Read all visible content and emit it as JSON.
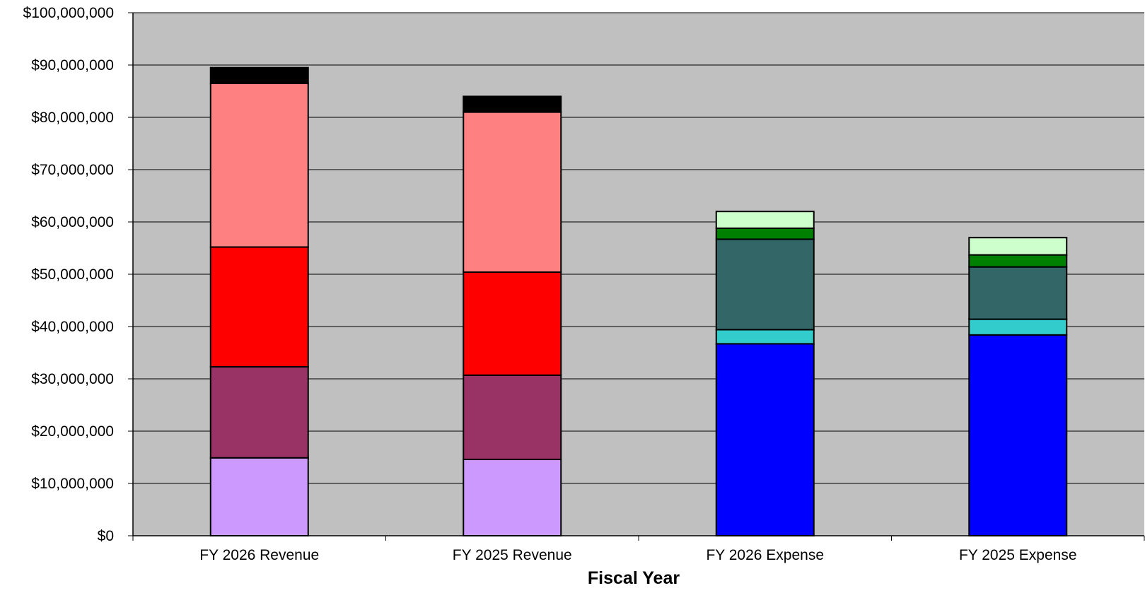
{
  "chart_data": {
    "type": "bar",
    "stacked": true,
    "title": "",
    "xlabel": "Fiscal Year",
    "ylabel": "",
    "ylim": [
      0,
      100000000
    ],
    "yticks": [
      0,
      10000000,
      20000000,
      30000000,
      40000000,
      50000000,
      60000000,
      70000000,
      80000000,
      90000000,
      100000000
    ],
    "ytick_labels": [
      "$0",
      "$10,000,000",
      "$20,000,000",
      "$30,000,000",
      "$40,000,000",
      "$50,000,000",
      "$60,000,000",
      "$70,000,000",
      "$80,000,000",
      "$90,000,000",
      "$100,000,000"
    ],
    "categories": [
      "FY 2026 Revenue",
      "FY 2025 Revenue",
      "FY 2026 Expense",
      "FY 2025 Expense"
    ],
    "grid": true,
    "legend": "none",
    "plot_background": "#C0C0C0",
    "series": [
      {
        "color": "#CC99FF",
        "values": [
          14900000,
          14600000,
          0,
          0
        ]
      },
      {
        "color": "#993366",
        "values": [
          17400000,
          16100000,
          0,
          0
        ]
      },
      {
        "color": "#FF0000",
        "values": [
          22900000,
          19700000,
          0,
          0
        ]
      },
      {
        "color": "#FF8080",
        "values": [
          31300000,
          30600000,
          0,
          0
        ]
      },
      {
        "color": "#000000",
        "values": [
          3000000,
          3000000,
          0,
          0
        ]
      },
      {
        "color": "#0000FF",
        "values": [
          0,
          0,
          36700000,
          38400000
        ]
      },
      {
        "color": "#33CCCC",
        "values": [
          0,
          0,
          2700000,
          3000000
        ]
      },
      {
        "color": "#336666",
        "values": [
          0,
          0,
          17300000,
          10000000
        ]
      },
      {
        "color": "#008000",
        "values": [
          0,
          0,
          2100000,
          2300000
        ]
      },
      {
        "color": "#CCFFCC",
        "values": [
          0,
          0,
          3200000,
          3300000
        ]
      }
    ]
  }
}
